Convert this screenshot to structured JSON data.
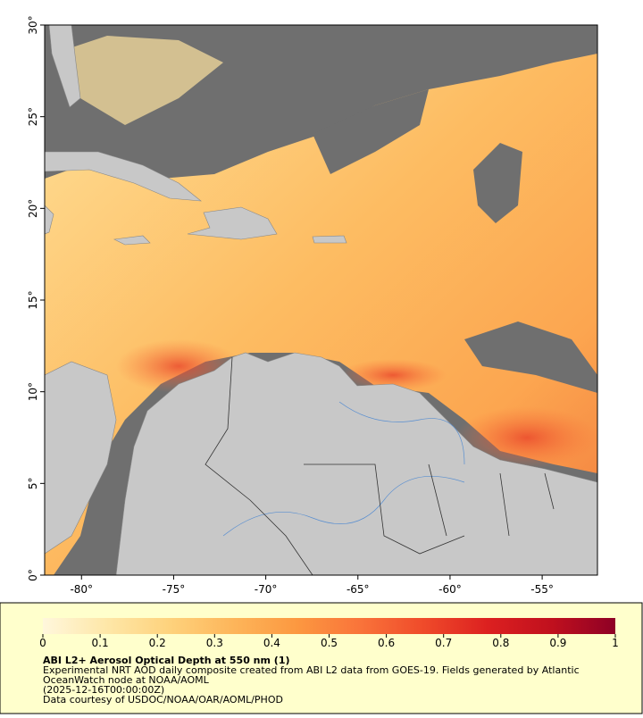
{
  "map": {
    "xlim": [
      -82,
      -52
    ],
    "ylim": [
      0,
      30
    ],
    "xticks": [
      {
        "value": -80,
        "label": "-80°"
      },
      {
        "value": -75,
        "label": "-75°"
      },
      {
        "value": -70,
        "label": "-70°"
      },
      {
        "value": -65,
        "label": "-65°"
      },
      {
        "value": -60,
        "label": "-60°"
      },
      {
        "value": -55,
        "label": "-55°"
      }
    ],
    "yticks": [
      {
        "value": 0,
        "label": "0°"
      },
      {
        "value": 5,
        "label": "5°"
      },
      {
        "value": 10,
        "label": "10°"
      },
      {
        "value": 15,
        "label": "15°"
      },
      {
        "value": 20,
        "label": "20°"
      },
      {
        "value": 25,
        "label": "25°"
      },
      {
        "value": 30,
        "label": "30°"
      }
    ]
  },
  "colorbar": {
    "range": [
      0,
      1
    ],
    "ticks": [
      0,
      0.1,
      0.2,
      0.3,
      0.4,
      0.5,
      0.6,
      0.7,
      0.8,
      0.9,
      1
    ],
    "colors": [
      "#fff7dc",
      "#fee7a8",
      "#fed27c",
      "#fdb55a",
      "#fc9840",
      "#f9733a",
      "#ef4a2a",
      "#dc2020",
      "#c0101e",
      "#8e0025"
    ]
  },
  "caption": {
    "title": "ABI L2+ Aerosol Optical Depth at 550 nm (1)",
    "lines": [
      "Experimental NRT AOD daily composite created from ABI L2 data from GOES-19. Fields generated by Atlantic",
      "OceanWatch node at NOAA/AOML",
      "(2025-12-16T00:00:00Z)",
      "Data courtesy of USDOC/NOAA/OAR/AOML/PHOD"
    ]
  }
}
